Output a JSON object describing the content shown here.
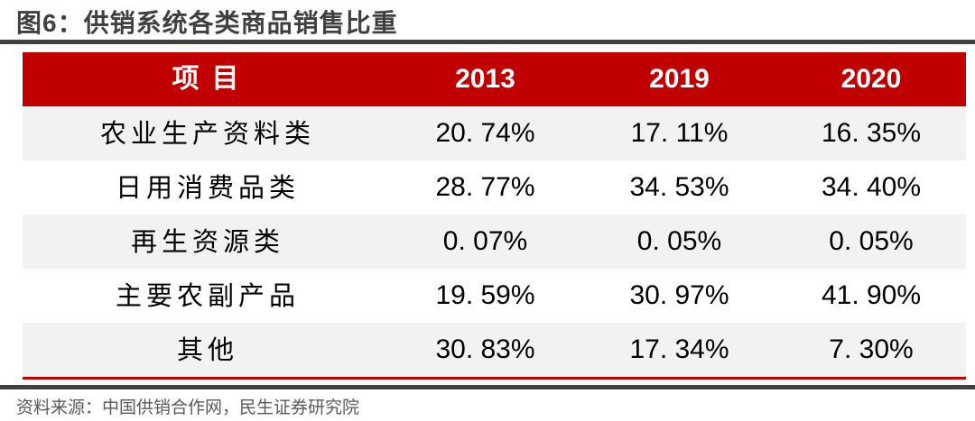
{
  "figure": {
    "label": "图6",
    "title": "图6：供销系统各类商品销售比重",
    "source": "资料来源：中国供销合作网，民生证券研究院"
  },
  "chart_data": {
    "type": "table",
    "title": "供销系统各类商品销售比重",
    "columns": [
      "项目",
      "2013",
      "2019",
      "2020"
    ],
    "rows": [
      {
        "label": "农业生产资料类",
        "values": [
          "20. 74%",
          "17. 11%",
          "16. 35%"
        ]
      },
      {
        "label": "日用消费品类",
        "values": [
          "28. 77%",
          "34. 53%",
          "34. 40%"
        ]
      },
      {
        "label": "再生资源类",
        "values": [
          "0. 07%",
          "0. 05%",
          "0. 05%"
        ]
      },
      {
        "label": "主要农副产品",
        "values": [
          "19. 59%",
          "30. 97%",
          "41. 90%"
        ]
      },
      {
        "label": "其他",
        "values": [
          "30. 83%",
          "17. 34%",
          "7. 30%"
        ]
      }
    ],
    "values_numeric": {
      "2013": [
        20.74,
        28.77,
        0.07,
        19.59,
        30.83
      ],
      "2019": [
        17.11,
        34.53,
        0.05,
        30.97,
        17.34
      ],
      "2020": [
        16.35,
        34.4,
        0.05,
        41.9,
        7.3
      ]
    }
  },
  "colors": {
    "header_red": "#C00000",
    "row_stripe_gray": "#F2F2F2",
    "rule_dark_gray": "#404040",
    "title_text": "#404040",
    "source_text": "#595959",
    "header_text": "#FFFFFF",
    "body_text": "#000000"
  }
}
